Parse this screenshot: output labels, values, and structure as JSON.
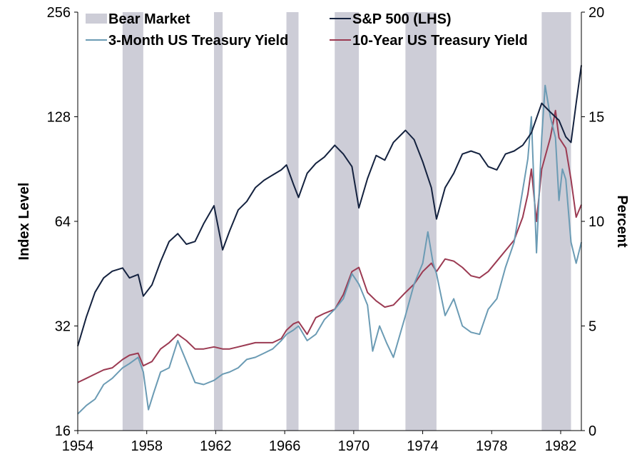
{
  "chart_data": {
    "type": "line",
    "ylabel_left": "Index Level",
    "ylabel_right": "Percent",
    "x_ticks": [
      "1954",
      "1958",
      "1962",
      "1966",
      "1970",
      "1974",
      "1978",
      "1982"
    ],
    "xlim": [
      1954,
      1983.2
    ],
    "y_left_scale": "log2",
    "y_left_ticks": [
      "16",
      "32",
      "64",
      "128",
      "256"
    ],
    "y_left_lim": [
      16,
      256
    ],
    "y_right_ticks": [
      "0",
      "5",
      "10",
      "15",
      "20"
    ],
    "y_right_lim": [
      0,
      20
    ],
    "grid": false,
    "legend": {
      "placement": "top",
      "items": [
        {
          "label": "Bear Market",
          "kind": "band"
        },
        {
          "label": "S&P 500 (LHS)",
          "kind": "line"
        },
        {
          "label": "3-Month US Treasury Yield",
          "kind": "line"
        },
        {
          "label": "10-Year US Treasury Yield",
          "kind": "line"
        }
      ]
    },
    "colors": {
      "bear": "#cdcdd7",
      "sp500": "#14223f",
      "t3m": "#6b9bb4",
      "t10y": "#9b3a52"
    },
    "bear_markets": [
      {
        "start": 1956.6,
        "end": 1957.8
      },
      {
        "start": 1961.9,
        "end": 1962.4
      },
      {
        "start": 1966.1,
        "end": 1966.8
      },
      {
        "start": 1968.9,
        "end": 1970.3
      },
      {
        "start": 1973.0,
        "end": 1974.8
      },
      {
        "start": 1980.9,
        "end": 1982.6
      }
    ],
    "series": [
      {
        "name": "S&P 500 (LHS)",
        "axis": "left",
        "x": [
          1954.0,
          1954.5,
          1955.0,
          1955.5,
          1956.0,
          1956.6,
          1957.0,
          1957.5,
          1957.8,
          1958.3,
          1958.8,
          1959.3,
          1959.8,
          1960.3,
          1960.8,
          1961.3,
          1961.9,
          1962.4,
          1962.8,
          1963.3,
          1963.8,
          1964.3,
          1964.8,
          1965.3,
          1965.8,
          1966.1,
          1966.5,
          1966.8,
          1967.3,
          1967.8,
          1968.3,
          1968.9,
          1969.4,
          1969.9,
          1970.3,
          1970.8,
          1971.3,
          1971.8,
          1972.3,
          1973.0,
          1973.5,
          1974.0,
          1974.5,
          1974.8,
          1975.3,
          1975.8,
          1976.3,
          1976.8,
          1977.3,
          1977.8,
          1978.3,
          1978.8,
          1979.3,
          1979.8,
          1980.3,
          1980.9,
          1981.4,
          1981.9,
          1982.3,
          1982.6,
          1982.9,
          1983.2
        ],
        "values": [
          28,
          34,
          40,
          44,
          46,
          47,
          44,
          45,
          39,
          42,
          49,
          56,
          59,
          55,
          56,
          63,
          71,
          53,
          60,
          69,
          73,
          80,
          84,
          87,
          90,
          93,
          82,
          75,
          88,
          94,
          98,
          106,
          100,
          92,
          70,
          85,
          99,
          96,
          108,
          117,
          110,
          95,
          80,
          65,
          80,
          88,
          100,
          102,
          100,
          92,
          90,
          100,
          102,
          106,
          115,
          140,
          132,
          125,
          112,
          108,
          140,
          180
        ]
      },
      {
        "name": "3-Month US Treasury Yield",
        "axis": "right",
        "x": [
          1954.0,
          1954.5,
          1955.0,
          1955.5,
          1956.0,
          1956.6,
          1957.0,
          1957.5,
          1957.8,
          1958.1,
          1958.4,
          1958.8,
          1959.3,
          1959.8,
          1960.2,
          1960.8,
          1961.3,
          1961.9,
          1962.4,
          1962.8,
          1963.3,
          1963.8,
          1964.3,
          1964.8,
          1965.3,
          1965.8,
          1966.1,
          1966.5,
          1966.8,
          1967.3,
          1967.8,
          1968.3,
          1968.9,
          1969.4,
          1969.9,
          1970.3,
          1970.8,
          1971.1,
          1971.5,
          1971.9,
          1972.3,
          1973.0,
          1973.5,
          1974.0,
          1974.3,
          1974.6,
          1974.8,
          1975.3,
          1975.8,
          1976.3,
          1976.8,
          1977.3,
          1977.8,
          1978.3,
          1978.8,
          1979.3,
          1979.8,
          1980.1,
          1980.3,
          1980.6,
          1980.9,
          1981.1,
          1981.4,
          1981.7,
          1981.9,
          1982.1,
          1982.3,
          1982.6,
          1982.9,
          1983.2
        ],
        "values": [
          0.8,
          1.2,
          1.5,
          2.2,
          2.5,
          3.0,
          3.2,
          3.5,
          2.8,
          1.0,
          1.8,
          2.8,
          3.0,
          4.3,
          3.5,
          2.3,
          2.2,
          2.4,
          2.7,
          2.8,
          3.0,
          3.4,
          3.5,
          3.7,
          3.9,
          4.3,
          4.6,
          4.8,
          5.0,
          4.3,
          4.6,
          5.3,
          5.8,
          6.3,
          7.5,
          7.0,
          6.0,
          3.8,
          5.0,
          4.2,
          3.5,
          5.5,
          7.0,
          8.0,
          9.5,
          8.0,
          7.5,
          5.5,
          6.3,
          5.0,
          4.7,
          4.6,
          5.8,
          6.3,
          7.8,
          9.0,
          11.5,
          13.0,
          15.0,
          8.5,
          14.0,
          16.5,
          15.0,
          14.0,
          11.0,
          12.5,
          12.0,
          9.0,
          8.0,
          9.0
        ]
      },
      {
        "name": "10-Year US Treasury Yield",
        "axis": "right",
        "x": [
          1954.0,
          1954.5,
          1955.0,
          1955.5,
          1956.0,
          1956.6,
          1957.0,
          1957.5,
          1957.8,
          1958.3,
          1958.8,
          1959.3,
          1959.8,
          1960.3,
          1960.8,
          1961.3,
          1961.9,
          1962.4,
          1962.8,
          1963.3,
          1963.8,
          1964.3,
          1964.8,
          1965.3,
          1965.8,
          1966.1,
          1966.5,
          1966.8,
          1967.3,
          1967.8,
          1968.3,
          1968.9,
          1969.4,
          1969.9,
          1970.3,
          1970.8,
          1971.3,
          1971.8,
          1972.3,
          1973.0,
          1973.5,
          1974.0,
          1974.5,
          1974.8,
          1975.3,
          1975.8,
          1976.3,
          1976.8,
          1977.3,
          1977.8,
          1978.3,
          1978.8,
          1979.3,
          1979.8,
          1980.1,
          1980.3,
          1980.6,
          1980.9,
          1981.4,
          1981.7,
          1981.9,
          1982.3,
          1982.6,
          1982.9,
          1983.2
        ],
        "values": [
          2.3,
          2.5,
          2.7,
          2.9,
          3.0,
          3.4,
          3.6,
          3.7,
          3.1,
          3.3,
          3.9,
          4.2,
          4.6,
          4.3,
          3.9,
          3.9,
          4.0,
          3.9,
          3.9,
          4.0,
          4.1,
          4.2,
          4.2,
          4.2,
          4.4,
          4.8,
          5.1,
          5.2,
          4.6,
          5.4,
          5.6,
          5.8,
          6.5,
          7.6,
          7.8,
          6.6,
          6.2,
          5.9,
          6.0,
          6.6,
          7.0,
          7.6,
          8.0,
          7.6,
          8.2,
          8.1,
          7.8,
          7.4,
          7.3,
          7.6,
          8.1,
          8.6,
          9.1,
          10.2,
          11.3,
          12.5,
          10.0,
          12.5,
          14.0,
          15.3,
          14.0,
          13.5,
          12.0,
          10.2,
          10.8
        ]
      }
    ]
  }
}
